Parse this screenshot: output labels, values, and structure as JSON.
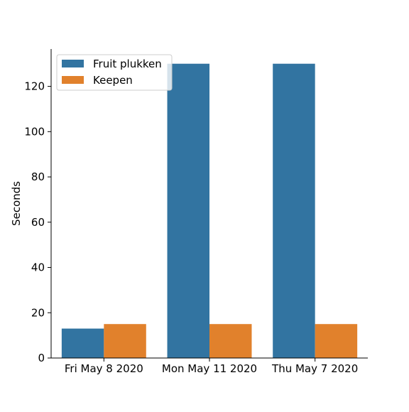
{
  "chart_data": {
    "type": "bar",
    "categories": [
      "Fri May 8 2020",
      "Mon May 11 2020",
      "Thu May 7 2020"
    ],
    "series": [
      {
        "name": "Fruit plukken",
        "values": [
          13,
          130,
          130
        ],
        "color": "#3274a1"
      },
      {
        "name": "Keepen",
        "values": [
          15,
          15,
          15
        ],
        "color": "#e1812c"
      }
    ],
    "title": "",
    "xlabel": "",
    "ylabel": "Seconds",
    "ylim": [
      0,
      136.5
    ],
    "yticks": [
      0,
      20,
      40,
      60,
      80,
      100,
      120
    ],
    "grid": false,
    "legend_position": "top-left"
  }
}
